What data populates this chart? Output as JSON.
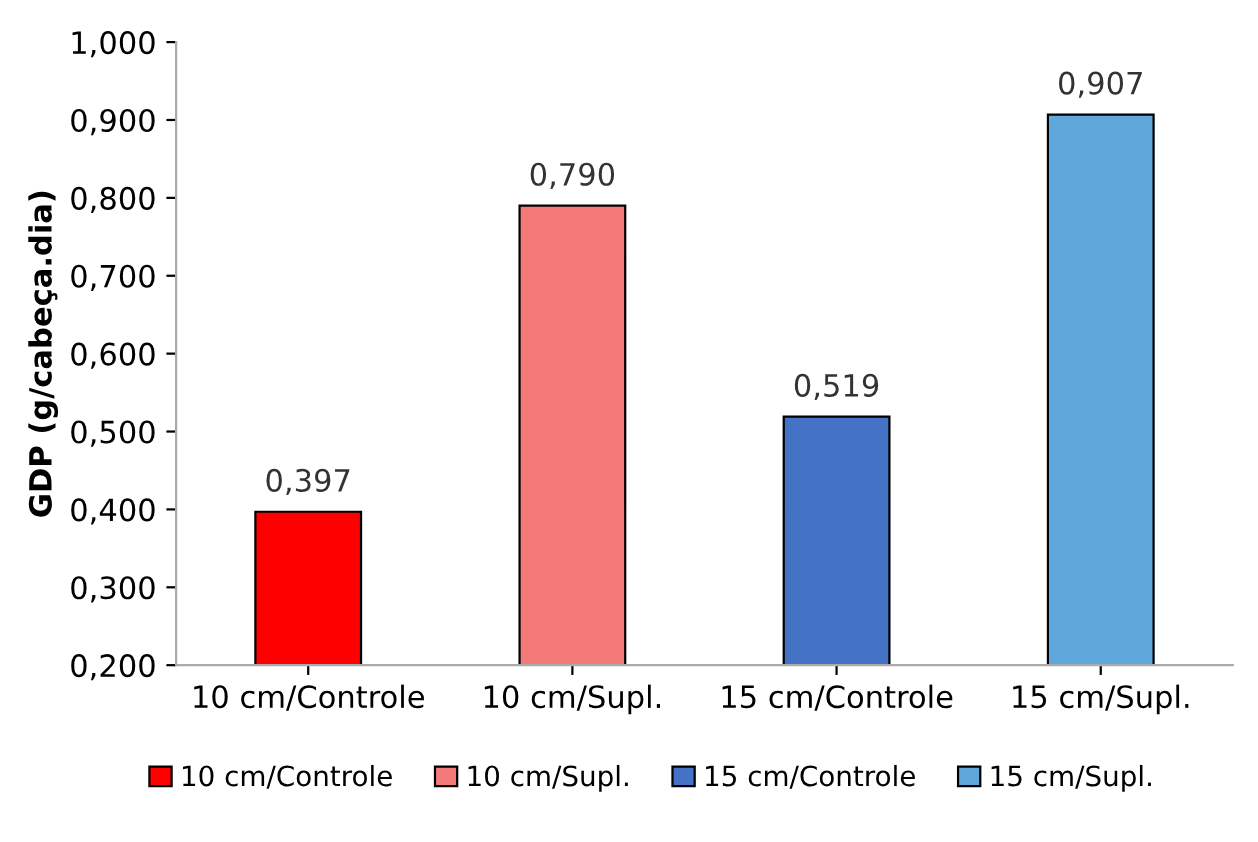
{
  "chart_data": {
    "type": "bar",
    "ylabel": "GDP (g/cabeça.dia)",
    "categories": [
      "10 cm/Controle",
      "10 cm/Supl.",
      "15 cm/Controle",
      "15 cm/Supl."
    ],
    "series": [
      {
        "name": "10 cm/Controle",
        "color": "#ff0000",
        "values": [
          0.397,
          null,
          null,
          null
        ],
        "value_labels": [
          "0,397",
          null,
          null,
          null
        ]
      },
      {
        "name": "10 cm/Supl.",
        "color": "#f47a7a",
        "values": [
          null,
          0.79,
          null,
          null
        ],
        "value_labels": [
          null,
          "0,790",
          null,
          null
        ]
      },
      {
        "name": "15 cm/Controle",
        "color": "#4472c4",
        "values": [
          null,
          null,
          0.519,
          null
        ],
        "value_labels": [
          null,
          null,
          "0,519",
          null
        ]
      },
      {
        "name": "15 cm/Supl.",
        "color": "#5fa8dc",
        "values": [
          null,
          null,
          null,
          0.907
        ],
        "value_labels": [
          null,
          null,
          null,
          "0,907"
        ]
      }
    ],
    "ylim": [
      0.2,
      1.0
    ],
    "yticks": [
      {
        "value": 0.2,
        "label": "0,200"
      },
      {
        "value": 0.3,
        "label": "0,300"
      },
      {
        "value": 0.4,
        "label": "0,400"
      },
      {
        "value": 0.5,
        "label": "0,500"
      },
      {
        "value": 0.6,
        "label": "0,600"
      },
      {
        "value": 0.7,
        "label": "0,700"
      },
      {
        "value": 0.8,
        "label": "0,800"
      },
      {
        "value": 0.9,
        "label": "0,900"
      },
      {
        "value": 1.0,
        "label": "1,000"
      }
    ],
    "grid": false,
    "legend": "bottom"
  }
}
